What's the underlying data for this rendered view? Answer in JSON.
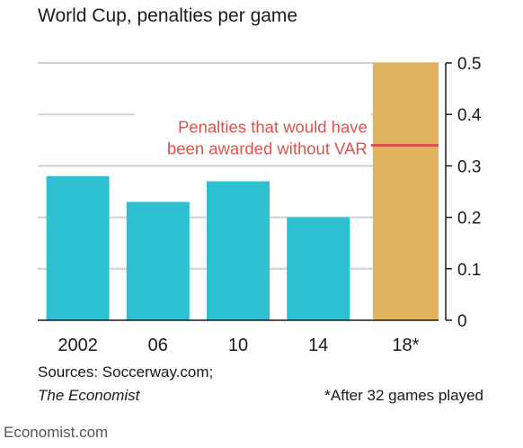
{
  "chart_data": {
    "type": "bar",
    "title": "World Cup, penalties per game",
    "categories": [
      "2002",
      "06",
      "10",
      "14",
      "18*"
    ],
    "values": [
      0.28,
      0.23,
      0.27,
      0.2,
      0.5
    ],
    "ylim": [
      0,
      0.5
    ],
    "yticks": [
      "0",
      "0.1",
      "0.2",
      "0.3",
      "0.4",
      "0.5"
    ],
    "xlabel": "",
    "ylabel": "",
    "grid": true,
    "y_axis_side": "right",
    "colors": {
      "bar": "#2cc0d0",
      "highlight_bar": "#e3b45f",
      "reference_line": "#d9534f",
      "grid": "#c9d3d9"
    },
    "reference": {
      "value": 0.34,
      "label_lines": [
        "Penalties that would have",
        "been awarded without VAR"
      ]
    }
  },
  "footer": {
    "source_line1": "Sources: Soccerway.com;",
    "source_line2": "The Economist",
    "note": "*After 32 games played",
    "brand": "Economist.com"
  }
}
